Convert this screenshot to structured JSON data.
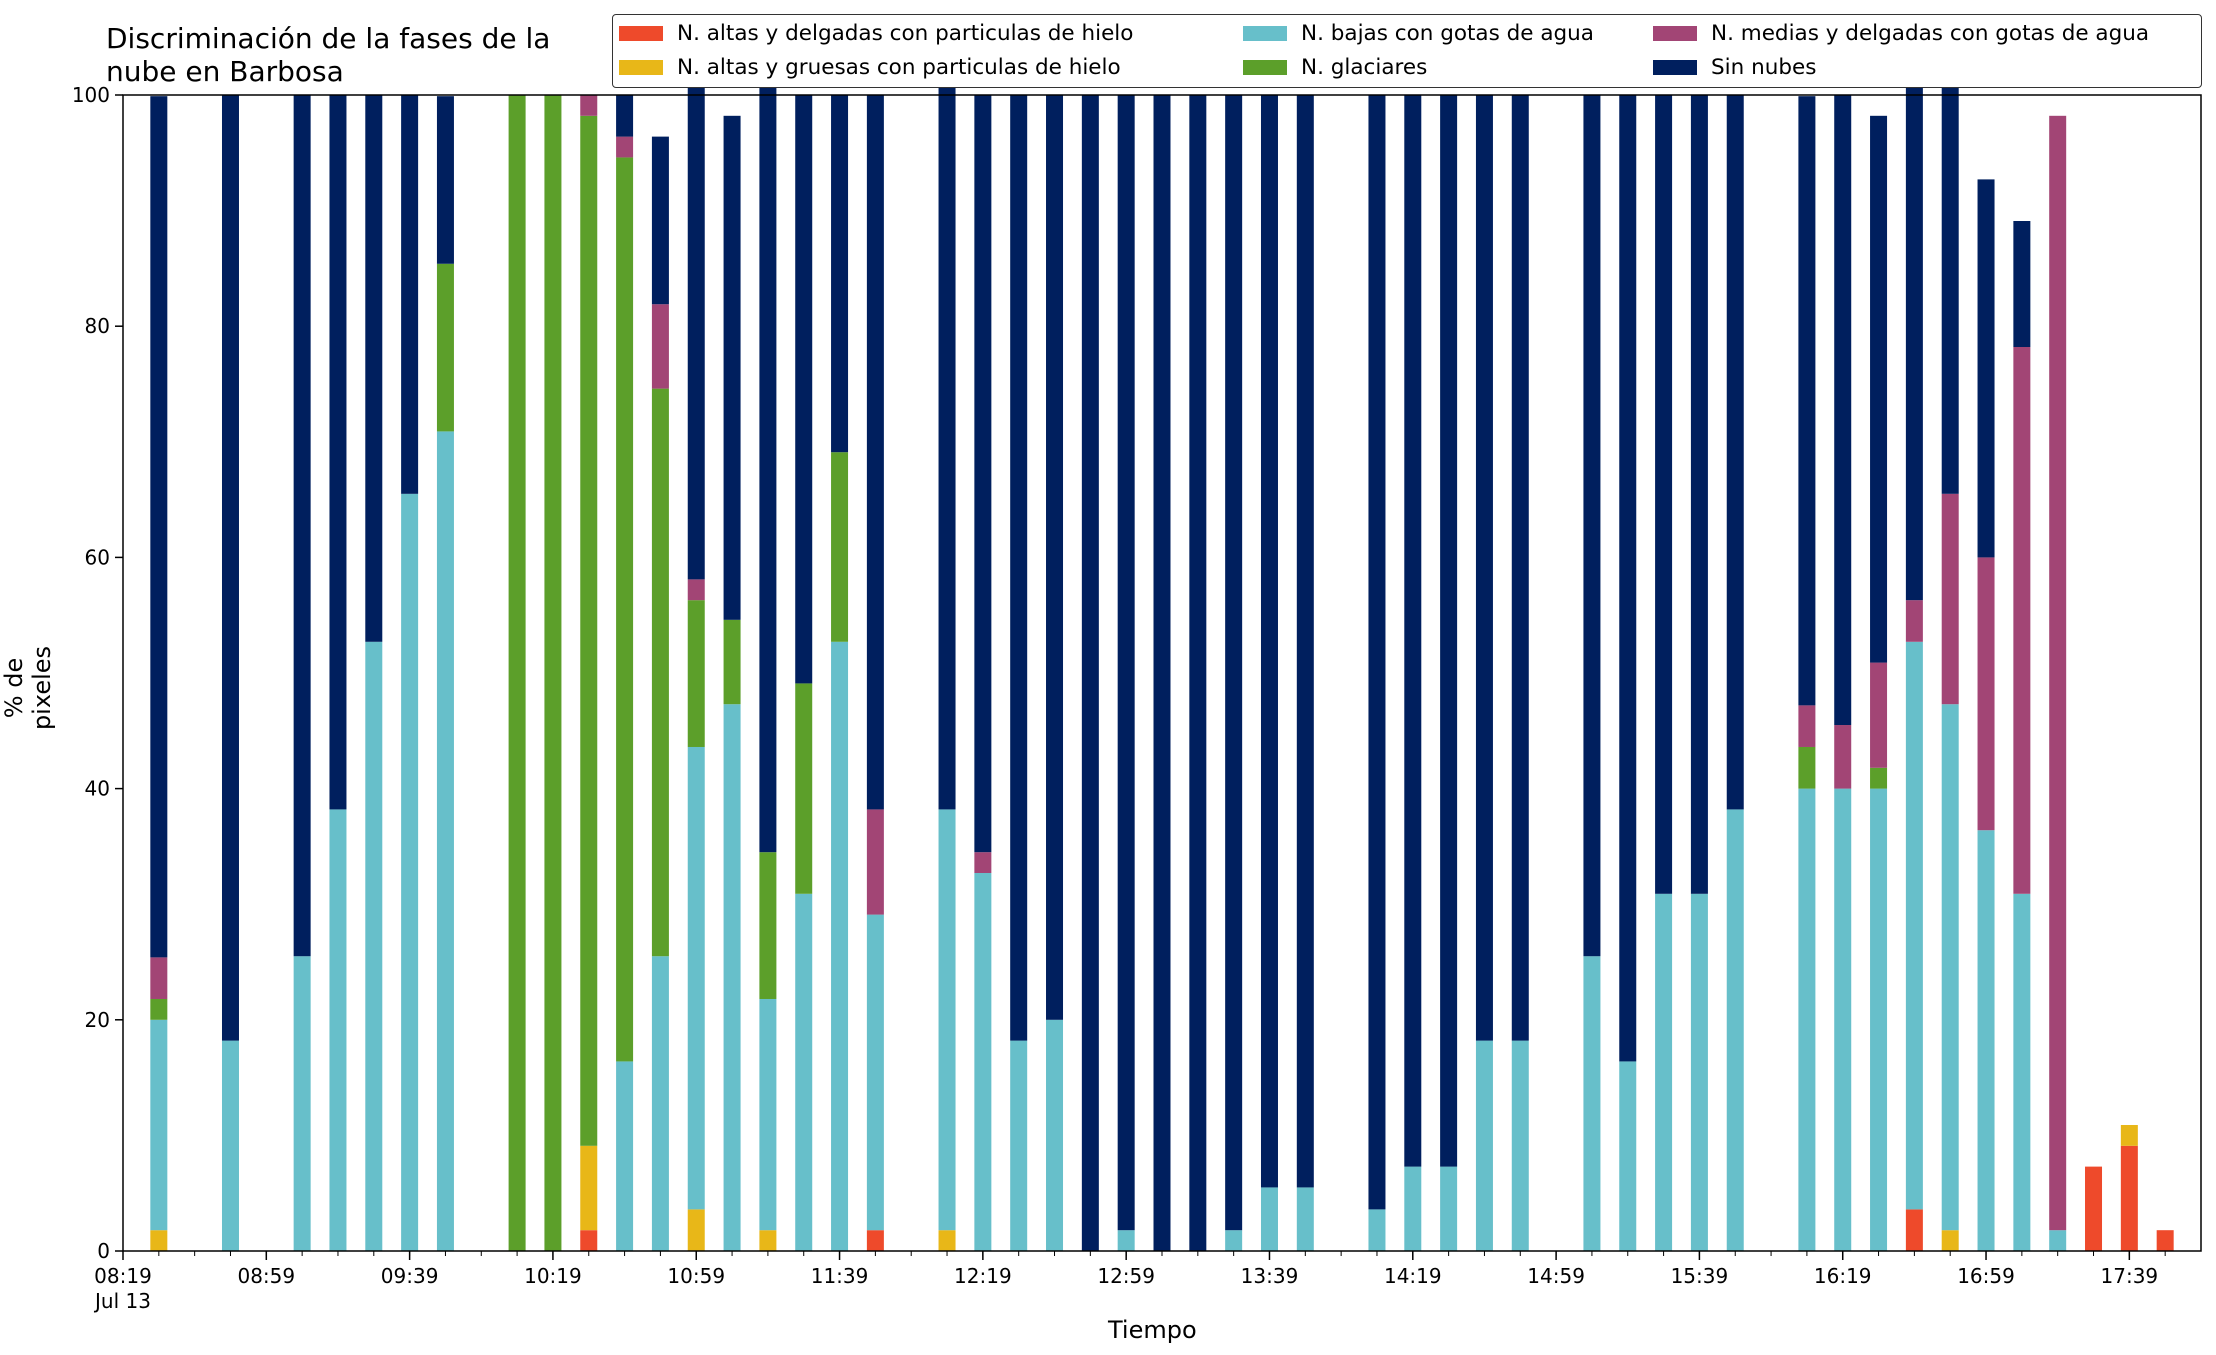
{
  "chart_data": {
    "type": "bar",
    "stacked": true,
    "title": "Discriminación de la fases de la nube en Barbosa",
    "title_lines": [
      "Discriminación de la fases de la",
      "nube en Barbosa"
    ],
    "xlabel": "Tiempo",
    "ylabel": "% de pixeles",
    "ylim": [
      0,
      100
    ],
    "yticks": [
      "0",
      "20",
      "40",
      "60",
      "80",
      "100"
    ],
    "xticks": [
      "08:19",
      "08:59",
      "09:39",
      "10:19",
      "10:59",
      "11:39",
      "12:19",
      "12:59",
      "13:39",
      "14:19",
      "14:59",
      "15:39",
      "16:19",
      "16:59",
      "17:39"
    ],
    "xtick_sublabel": "Jul 13",
    "x_range": [
      "08:19",
      "17:59"
    ],
    "legend_position": "top-right",
    "times": [
      "08:29",
      "08:49",
      "09:09",
      "09:19",
      "09:29",
      "09:39",
      "09:49",
      "10:09",
      "10:19",
      "10:29",
      "10:39",
      "10:49",
      "10:59",
      "11:09",
      "11:19",
      "11:29",
      "11:39",
      "11:49",
      "12:09",
      "12:19",
      "12:29",
      "12:39",
      "12:49",
      "12:59",
      "13:09",
      "13:19",
      "13:29",
      "13:39",
      "13:49",
      "14:09",
      "14:19",
      "14:29",
      "14:39",
      "14:49",
      "15:09",
      "15:19",
      "15:29",
      "15:39",
      "15:49",
      "16:09",
      "16:19",
      "16:29",
      "16:39",
      "16:49",
      "16:59",
      "17:09",
      "17:19",
      "17:29",
      "17:39",
      "17:49",
      "17:59"
    ],
    "series": [
      {
        "name": "N. altas y delgadas con particulas de hielo",
        "color": "#ee4a2b",
        "values": [
          0,
          0,
          0,
          0,
          0,
          0,
          0,
          0,
          0,
          1.8,
          0,
          0,
          0,
          0,
          0,
          0,
          0,
          1.8,
          0,
          0,
          0,
          0,
          0,
          0,
          0,
          0,
          0,
          0,
          0,
          0,
          0,
          0,
          0,
          0,
          0,
          0,
          0,
          0,
          0,
          0,
          0,
          0,
          3.6,
          0,
          0,
          0,
          0,
          7.3,
          9.1,
          1.8,
          0
        ]
      },
      {
        "name": "N. altas y gruesas con particulas de hielo",
        "color": "#e8b718",
        "values": [
          1.8,
          0,
          0,
          0,
          0,
          0,
          0,
          0,
          0,
          7.3,
          0,
          0,
          3.6,
          0,
          1.8,
          0,
          0,
          0,
          1.8,
          0,
          0,
          0,
          0,
          0,
          0,
          0,
          0,
          0,
          0,
          0,
          0,
          0,
          0,
          0,
          0,
          0,
          0,
          0,
          0,
          0,
          0,
          0,
          0,
          1.8,
          0,
          0,
          0,
          0,
          1.8,
          0,
          0
        ]
      },
      {
        "name": "N. bajas con gotas de agua",
        "color": "#67bfca",
        "values": [
          18.2,
          18.2,
          25.5,
          38.2,
          52.7,
          65.5,
          70.9,
          0,
          0,
          0,
          16.4,
          25.5,
          40,
          47.3,
          20,
          30.9,
          52.7,
          27.3,
          36.4,
          32.7,
          18.2,
          20,
          0,
          1.8,
          0,
          0,
          1.8,
          5.5,
          5.5,
          3.6,
          7.3,
          7.3,
          18.2,
          18.2,
          25.5,
          16.4,
          30.9,
          30.9,
          38.2,
          40,
          40,
          40,
          49.1,
          45.5,
          36.4,
          30.9,
          1.8,
          0,
          0,
          0,
          0
        ]
      },
      {
        "name": "N. glaciares",
        "color": "#5c9f2a",
        "values": [
          1.8,
          0,
          0,
          0,
          0,
          0,
          14.5,
          100,
          100,
          89.1,
          78.2,
          49.1,
          12.7,
          7.3,
          12.7,
          18.2,
          16.4,
          0,
          0,
          0,
          0,
          0,
          0,
          0,
          0,
          0,
          0,
          0,
          0,
          0,
          0,
          0,
          0,
          0,
          0,
          0,
          0,
          0,
          0,
          3.6,
          0,
          1.8,
          0,
          0,
          0,
          0,
          0,
          0,
          0,
          0,
          0
        ]
      },
      {
        "name": "N. medias y delgadas con gotas de agua",
        "color": "#a24575",
        "values": [
          3.6,
          0,
          0,
          0,
          0,
          0,
          0,
          0,
          0,
          1.8,
          1.8,
          7.3,
          1.8,
          0,
          0,
          0,
          0,
          9.1,
          0,
          1.8,
          0,
          0,
          0,
          0,
          0,
          0,
          0,
          0,
          0,
          0,
          0,
          0,
          0,
          0,
          0,
          0,
          0,
          0,
          0,
          3.6,
          5.5,
          9.1,
          3.6,
          18.2,
          23.6,
          47.3,
          96.4,
          0,
          0,
          0,
          0
        ]
      },
      {
        "name": "Sin nubes",
        "color": "#001f5e",
        "values": [
          74.5,
          81.8,
          74.5,
          61.8,
          47.3,
          34.5,
          14.5,
          0,
          0,
          0,
          3.6,
          14.5,
          45.5,
          43.6,
          67.3,
          50.9,
          30.9,
          61.8,
          63.6,
          65.5,
          81.8,
          80,
          100,
          98.2,
          100,
          100,
          98.2,
          94.5,
          94.5,
          96.4,
          92.7,
          92.7,
          81.8,
          81.8,
          74.5,
          83.6,
          69.1,
          69.1,
          61.8,
          52.7,
          54.5,
          47.3,
          47.3,
          36.4,
          32.7,
          10.9,
          0,
          0,
          0,
          0,
          0
        ]
      }
    ]
  }
}
